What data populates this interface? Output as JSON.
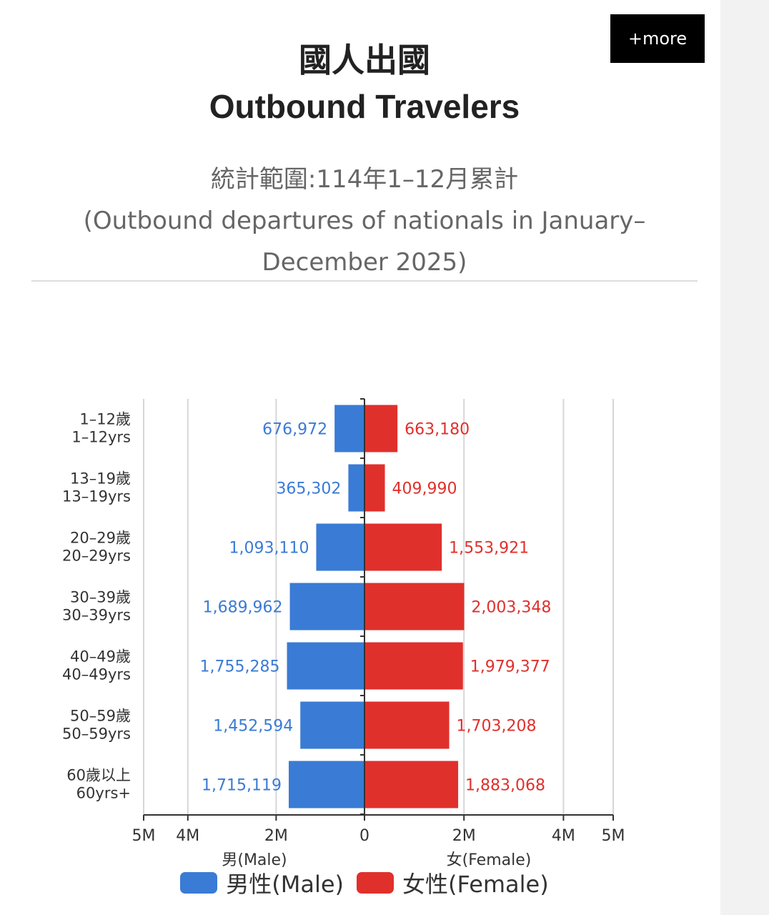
{
  "header": {
    "title_zh": "國人出國",
    "title_en": "Outbound Travelers",
    "more_label": "+more",
    "subtitle_zh": "統計範圍:114年1–12月累計",
    "subtitle_en": "(Outbound departures of nationals in January–December 2025)"
  },
  "chart_data": {
    "type": "bar",
    "orientation": "horizontal-population-pyramid",
    "categories": [
      "1–12歲\n1–12yrs",
      "13–19歲\n13–19yrs",
      "20–29歲\n20–29yrs",
      "30–39歲\n30–39yrs",
      "40–49歲\n40–49yrs",
      "50–59歲\n50–59yrs",
      "60歲以上\n60yrs+"
    ],
    "series": [
      {
        "name": "男性(Male)",
        "axis_label": "男(Male)",
        "color": "#3a7bd5",
        "values": [
          676972,
          365302,
          1093110,
          1689962,
          1755285,
          1452594,
          1715119
        ]
      },
      {
        "name": "女性(Female)",
        "axis_label": "女(Female)",
        "color": "#e0302c",
        "values": [
          663180,
          409990,
          1553921,
          2003348,
          1979377,
          1703208,
          1883068
        ]
      }
    ],
    "xlim": [
      0,
      5000000
    ],
    "ticks": [
      5000000,
      4000000,
      2000000,
      0,
      2000000,
      4000000,
      5000000
    ],
    "tick_labels": [
      "5M",
      "4M",
      "2M",
      "0",
      "2M",
      "4M",
      "5M"
    ],
    "grid": true,
    "legend": "bottom-center"
  }
}
